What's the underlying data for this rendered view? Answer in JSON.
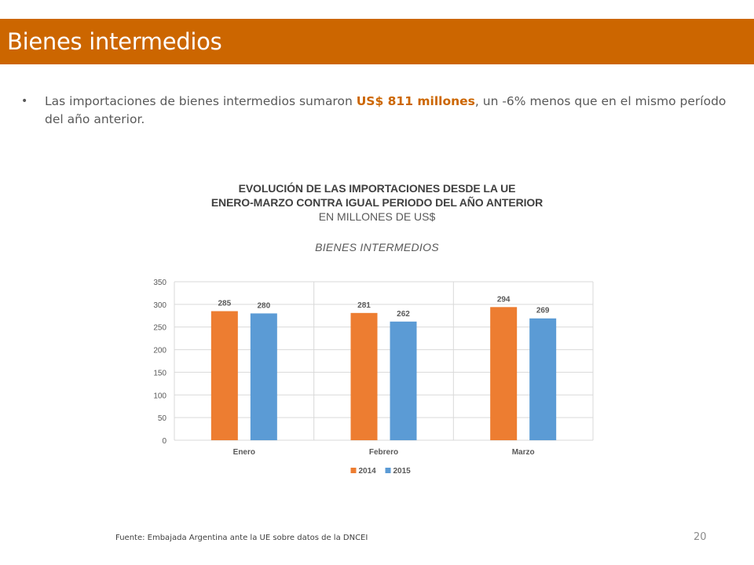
{
  "slide": {
    "title": "Bienes intermedios",
    "bullet": {
      "text_before": "Las importaciones de bienes intermedios sumaron ",
      "highlight": "US$  811 millones",
      "text_after": ", un -6% menos que en el mismo período del año anterior."
    },
    "chart_heading": {
      "line1": "EVOLUCIÓN DE LAS IMPORTACIONES DESDE LA UE",
      "line2": "ENERO-MARZO CONTRA IGUAL PERIODO DEL AÑO ANTERIOR",
      "line3": "EN MILLONES DE US$"
    },
    "source": "Fuente: Embajada  Argentina ante la UE sobre datos de la DNCEI",
    "page_number": "20",
    "accent_color": "#cc6600"
  },
  "chart_data": {
    "type": "bar",
    "title": "BIENES INTERMEDIOS",
    "categories": [
      "Enero",
      "Febrero",
      "Marzo"
    ],
    "series": [
      {
        "name": "2014",
        "values": [
          285,
          281,
          294
        ],
        "color": "#ed7d31"
      },
      {
        "name": "2015",
        "values": [
          280,
          262,
          269
        ],
        "color": "#5b9bd5"
      }
    ],
    "ylim": [
      0,
      350
    ],
    "yticks": [
      0,
      50,
      100,
      150,
      200,
      250,
      300,
      350
    ],
    "grid": true,
    "legend": "bottom",
    "data_labels": true
  }
}
